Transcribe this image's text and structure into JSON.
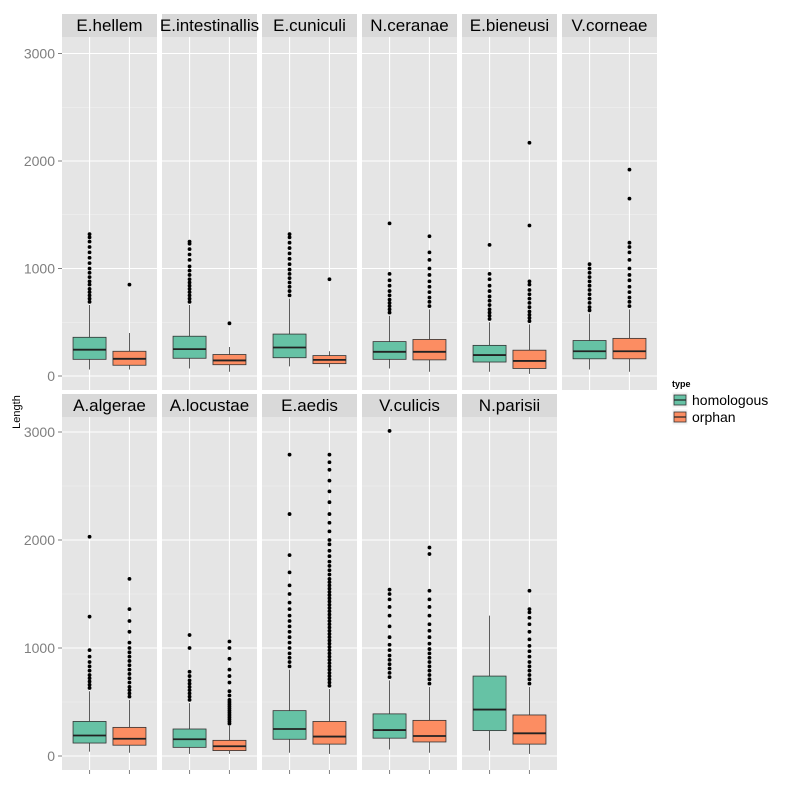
{
  "chart_data": {
    "type": "boxplot",
    "xlabel": "",
    "ylabel": "Length",
    "ylim": [
      -90,
      3200
    ],
    "yticks": [
      0,
      1000,
      2000,
      3000
    ],
    "grid": true,
    "legend": {
      "title": "type",
      "placement": "right",
      "entries": [
        {
          "name": "homologous",
          "color": "#66C2A5"
        },
        {
          "name": "orphan",
          "color": "#FC8D62"
        }
      ]
    },
    "panels": [
      {
        "name": "E.hellem",
        "boxes": [
          {
            "type": "homologous",
            "q1": 155,
            "median": 245,
            "q3": 360,
            "whisker_low": 60,
            "whisker_high": 660,
            "outliers": [
              690,
              720,
              750,
              780,
              810,
              850,
              880,
              920,
              960,
              1000,
              1050,
              1100,
              1150,
              1200,
              1250,
              1290,
              1320
            ]
          },
          {
            "type": "orphan",
            "q1": 100,
            "median": 160,
            "q3": 230,
            "whisker_low": 60,
            "whisker_high": 400,
            "outliers": [
              850
            ]
          }
        ]
      },
      {
        "name": "E.intestinallis",
        "boxes": [
          {
            "type": "homologous",
            "q1": 165,
            "median": 250,
            "q3": 370,
            "whisker_low": 70,
            "whisker_high": 660,
            "outliers": [
              690,
              720,
              750,
              780,
              810,
              840,
              870,
              900,
              940,
              980,
              1020,
              1080,
              1130,
              1180,
              1230,
              1250
            ]
          },
          {
            "type": "orphan",
            "q1": 105,
            "median": 145,
            "q3": 200,
            "whisker_low": 40,
            "whisker_high": 270,
            "outliers": [
              490
            ]
          }
        ]
      },
      {
        "name": "E.cuniculi",
        "boxes": [
          {
            "type": "homologous",
            "q1": 170,
            "median": 265,
            "q3": 390,
            "whisker_low": 90,
            "whisker_high": 720,
            "outliers": [
              750,
              790,
              830,
              870,
              910,
              950,
              990,
              1040,
              1090,
              1140,
              1190,
              1240,
              1290,
              1320
            ]
          },
          {
            "type": "orphan",
            "q1": 115,
            "median": 150,
            "q3": 190,
            "whisker_low": 80,
            "whisker_high": 230,
            "outliers": [
              900
            ]
          }
        ]
      },
      {
        "name": "N.ceranae",
        "boxes": [
          {
            "type": "homologous",
            "q1": 155,
            "median": 225,
            "q3": 320,
            "whisker_low": 70,
            "whisker_high": 560,
            "outliers": [
              590,
              620,
              650,
              680,
              710,
              750,
              790,
              840,
              890,
              950,
              1420
            ]
          },
          {
            "type": "orphan",
            "q1": 150,
            "median": 225,
            "q3": 340,
            "whisker_low": 40,
            "whisker_high": 620,
            "outliers": [
              650,
              690,
              730,
              780,
              830,
              880,
              940,
              1000,
              1080,
              1150,
              1300
            ]
          }
        ]
      },
      {
        "name": "E.bieneusi",
        "boxes": [
          {
            "type": "homologous",
            "q1": 130,
            "median": 195,
            "q3": 285,
            "whisker_low": 40,
            "whisker_high": 500,
            "outliers": [
              530,
              560,
              590,
              620,
              660,
              700,
              740,
              790,
              840,
              900,
              950,
              1220
            ]
          },
          {
            "type": "orphan",
            "q1": 70,
            "median": 140,
            "q3": 240,
            "whisker_low": 20,
            "whisker_high": 480,
            "outliers": [
              510,
              540,
              570,
              600,
              640,
              680,
              720,
              760,
              800,
              850,
              880,
              1400,
              2170
            ]
          }
        ]
      },
      {
        "name": "V.corneae",
        "boxes": [
          {
            "type": "homologous",
            "q1": 160,
            "median": 230,
            "q3": 330,
            "whisker_low": 60,
            "whisker_high": 580,
            "outliers": [
              610,
              640,
              680,
              720,
              760,
              800,
              840,
              880,
              920,
              960,
              1000,
              1040
            ]
          },
          {
            "type": "orphan",
            "q1": 160,
            "median": 230,
            "q3": 350,
            "whisker_low": 40,
            "whisker_high": 620,
            "outliers": [
              650,
              690,
              730,
              780,
              830,
              890,
              940,
              1000,
              1080,
              1150,
              1200,
              1240,
              1650,
              1920
            ]
          }
        ]
      },
      {
        "name": "A.algerae",
        "boxes": [
          {
            "type": "homologous",
            "q1": 120,
            "median": 190,
            "q3": 320,
            "whisker_low": 40,
            "whisker_high": 600,
            "outliers": [
              630,
              660,
              690,
              720,
              750,
              790,
              830,
              870,
              920,
              980,
              1290,
              2030
            ]
          },
          {
            "type": "orphan",
            "q1": 100,
            "median": 160,
            "q3": 265,
            "whisker_low": 30,
            "whisker_high": 520,
            "outliers": [
              550,
              580,
              610,
              640,
              680,
              720,
              760,
              800,
              840,
              880,
              920,
              960,
              1000,
              1050,
              1150,
              1250,
              1360,
              1640
            ]
          }
        ]
      },
      {
        "name": "A.locustae",
        "boxes": [
          {
            "type": "homologous",
            "q1": 80,
            "median": 155,
            "q3": 250,
            "whisker_low": 20,
            "whisker_high": 490,
            "outliers": [
              520,
              550,
              580,
              610,
              640,
              670,
              700,
              740,
              780,
              1000,
              1120
            ]
          },
          {
            "type": "orphan",
            "q1": 50,
            "median": 90,
            "q3": 145,
            "whisker_low": 20,
            "whisker_high": 280,
            "outliers": [
              300,
              320,
              340,
              360,
              380,
              400,
              420,
              440,
              460,
              480,
              500,
              520,
              560,
              600,
              680,
              740,
              800,
              900,
              1000,
              1060
            ]
          }
        ]
      },
      {
        "name": "E.aedis",
        "boxes": [
          {
            "type": "homologous",
            "q1": 155,
            "median": 250,
            "q3": 420,
            "whisker_low": 30,
            "whisker_high": 800,
            "outliers": [
              830,
              870,
              910,
              950,
              1000,
              1050,
              1100,
              1150,
              1200,
              1250,
              1300,
              1360,
              1420,
              1500,
              1580,
              1700,
              1860,
              2240,
              2790
            ]
          },
          {
            "type": "orphan",
            "q1": 110,
            "median": 180,
            "q3": 320,
            "whisker_low": 20,
            "whisker_high": 620,
            "outliers": [
              650,
              680,
              710,
              740,
              770,
              800,
              830,
              860,
              890,
              920,
              950,
              980,
              1010,
              1040,
              1070,
              1100,
              1130,
              1160,
              1190,
              1220,
              1250,
              1280,
              1310,
              1340,
              1370,
              1400,
              1430,
              1460,
              1490,
              1520,
              1550,
              1580,
              1610,
              1640,
              1680,
              1720,
              1760,
              1800,
              1850,
              1900,
              1960,
              2000,
              2080,
              2160,
              2240,
              2350,
              2450,
              2550,
              2650,
              2720,
              2790
            ]
          }
        ]
      },
      {
        "name": "V.culicis",
        "boxes": [
          {
            "type": "homologous",
            "q1": 165,
            "median": 240,
            "q3": 390,
            "whisker_low": 60,
            "whisker_high": 700,
            "outliers": [
              730,
              770,
              810,
              850,
              890,
              930,
              980,
              1030,
              1100,
              1200,
              1300,
              1380,
              1450,
              1500,
              1540,
              3010
            ]
          },
          {
            "type": "orphan",
            "q1": 130,
            "median": 185,
            "q3": 330,
            "whisker_low": 30,
            "whisker_high": 640,
            "outliers": [
              670,
              710,
              750,
              790,
              830,
              870,
              910,
              950,
              990,
              1040,
              1100,
              1160,
              1220,
              1300,
              1380,
              1450,
              1530,
              1870,
              1930
            ]
          }
        ]
      },
      {
        "name": "N.parisii",
        "boxes": [
          {
            "type": "homologous",
            "q1": 235,
            "median": 430,
            "q3": 740,
            "whisker_low": 50,
            "whisker_high": 1300,
            "outliers": []
          },
          {
            "type": "orphan",
            "q1": 110,
            "median": 210,
            "q3": 380,
            "whisker_low": 20,
            "whisker_high": 640,
            "outliers": [
              670,
              710,
              750,
              790,
              830,
              870,
              920,
              970,
              1020,
              1080,
              1150,
              1220,
              1280,
              1330,
              1360,
              1530
            ]
          }
        ]
      }
    ]
  }
}
